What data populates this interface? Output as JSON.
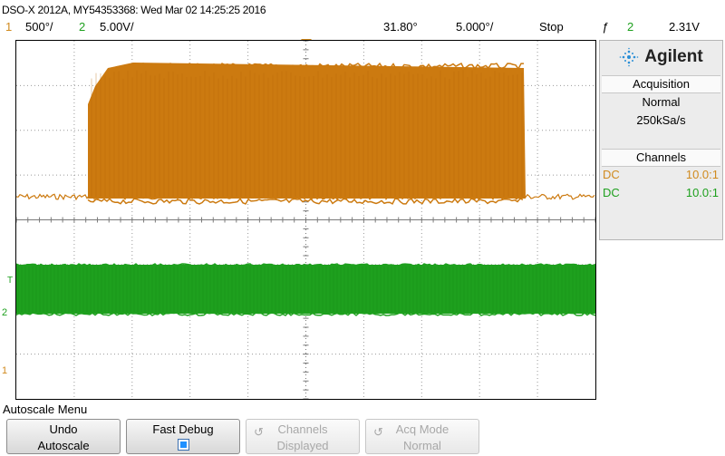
{
  "header": {
    "title": "DSO-X 2012A, MY54353368: Wed Mar 02 14:25:25 2016",
    "ch1_num": "1",
    "ch1_scale": "500°/",
    "ch2_num": "2",
    "ch2_scale": "5.00V/",
    "time_offset": "31.80°",
    "time_scale": "5.000°/",
    "run_state": "Stop",
    "trigger_icon": "ƒ",
    "trigger_source": "2",
    "trigger_level": "2.31V"
  },
  "sidebar": {
    "brand": "Agilent",
    "acquisition_title": "Acquisition",
    "acq_mode": "Normal",
    "acq_rate": "250kSa/s",
    "channels_title": "Channels",
    "ch1_coupling": "DC",
    "ch1_probe": "10.0:1",
    "ch2_coupling": "DC",
    "ch2_probe": "10.0:1"
  },
  "menu": {
    "title": "Autoscale Menu",
    "undo_line1": "Undo",
    "undo_line2": "Autoscale",
    "fast_debug": "Fast Debug",
    "channels_line1": "Channels",
    "channels_line2": "Displayed",
    "acq_line1": "Acq Mode",
    "acq_line2": "Normal",
    "rotate_icon": "↺"
  },
  "markers": {
    "ch1_ground": "1",
    "ch2_ground": "2",
    "trigger_t": "T"
  },
  "colors": {
    "ch1": "#cc7a10",
    "ch2": "#1ea01e"
  }
}
